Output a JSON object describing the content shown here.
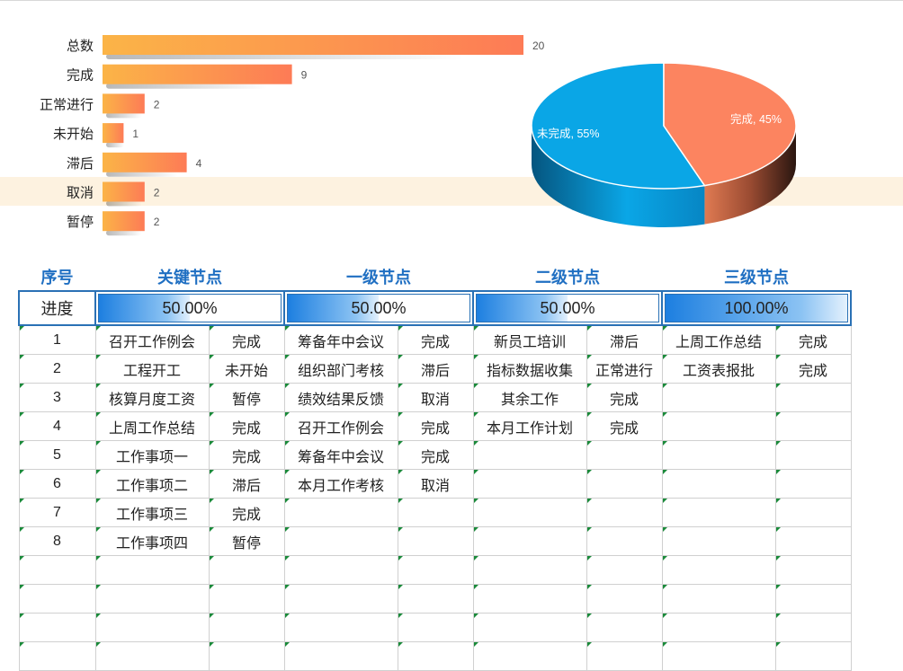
{
  "chart_data": [
    {
      "type": "bar",
      "categories": [
        "总数",
        "完成",
        "正常进行",
        "未开始",
        "滞后",
        "取消",
        "暂停"
      ],
      "values": [
        20,
        9,
        2,
        1,
        4,
        2,
        2
      ],
      "title": "",
      "xlabel": "",
      "ylabel": "",
      "xlim": [
        0,
        20
      ],
      "grid": false,
      "colors": [
        "#fbb447",
        "#fd7b56"
      ]
    },
    {
      "type": "pie",
      "categories": [
        "未完成",
        "完成"
      ],
      "values": [
        55,
        45
      ],
      "labels": [
        "未完成, 55%",
        "完成, 45%"
      ],
      "colors": [
        "#0aa6e6",
        "#fc8460"
      ]
    }
  ],
  "table": {
    "headers": [
      "序号",
      "关键节点",
      "一级节点",
      "二级节点",
      "三级节点"
    ],
    "progress_label": "进度",
    "progress": [
      {
        "text": "50.00%",
        "value": 0.5
      },
      {
        "text": "50.00%",
        "value": 0.5
      },
      {
        "text": "50.00%",
        "value": 0.5
      },
      {
        "text": "100.00%",
        "value": 1.0
      }
    ],
    "rows": [
      [
        "1",
        "召开工作例会",
        "完成",
        "筹备年中会议",
        "完成",
        "新员工培训",
        "滞后",
        "上周工作总结",
        "完成"
      ],
      [
        "2",
        "工程开工",
        "未开始",
        "组织部门考核",
        "滞后",
        "指标数据收集",
        "正常进行",
        "工资表报批",
        "完成"
      ],
      [
        "3",
        "核算月度工资",
        "暂停",
        "绩效结果反馈",
        "取消",
        "其余工作",
        "完成",
        "",
        ""
      ],
      [
        "4",
        "上周工作总结",
        "完成",
        "召开工作例会",
        "完成",
        "本月工作计划",
        "完成",
        "",
        ""
      ],
      [
        "5",
        "工作事项一",
        "完成",
        "筹备年中会议",
        "完成",
        "",
        "",
        "",
        ""
      ],
      [
        "6",
        "工作事项二",
        "滞后",
        "本月工作考核",
        "取消",
        "",
        "",
        "",
        ""
      ],
      [
        "7",
        "工作事项三",
        "完成",
        "",
        "",
        "",
        "",
        "",
        ""
      ],
      [
        "8",
        "工作事项四",
        "暂停",
        "",
        "",
        "",
        "",
        "",
        ""
      ],
      [
        "",
        "",
        "",
        "",
        "",
        "",
        "",
        "",
        ""
      ],
      [
        "",
        "",
        "",
        "",
        "",
        "",
        "",
        "",
        ""
      ],
      [
        "",
        "",
        "",
        "",
        "",
        "",
        "",
        "",
        ""
      ],
      [
        "",
        "",
        "",
        "",
        "",
        "",
        "",
        "",
        ""
      ]
    ]
  }
}
